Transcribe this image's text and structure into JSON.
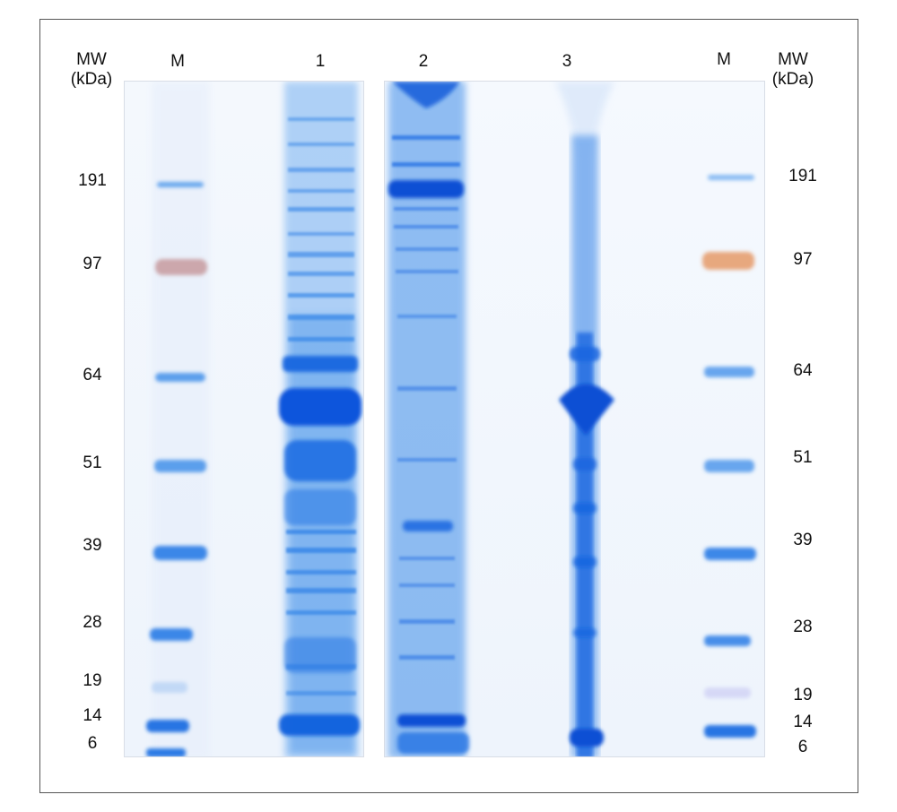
{
  "header": {
    "mw_label_left": "MW\n(kDa)",
    "mw_label_right": "MW\n(kDa)"
  },
  "lanes": [
    {
      "id": "M-left",
      "label": "M"
    },
    {
      "id": "1",
      "label": "1"
    },
    {
      "id": "2",
      "label": "2"
    },
    {
      "id": "3",
      "label": "3"
    },
    {
      "id": "M-right",
      "label": "M"
    }
  ],
  "markers_left": [
    {
      "label": "191"
    },
    {
      "label": "97"
    },
    {
      "label": "64"
    },
    {
      "label": "51"
    },
    {
      "label": "39"
    },
    {
      "label": "28"
    },
    {
      "label": "19"
    },
    {
      "label": "14"
    },
    {
      "label": "6"
    }
  ],
  "markers_right": [
    {
      "label": "191"
    },
    {
      "label": "97"
    },
    {
      "label": "64"
    },
    {
      "label": "51"
    },
    {
      "label": "39"
    },
    {
      "label": "28"
    },
    {
      "label": "19"
    },
    {
      "label": "14"
    },
    {
      "label": "6"
    }
  ],
  "colors": {
    "stain": "#1f6fe0",
    "stain_dark": "#0a4fd6",
    "marker_97": "#c98a82",
    "gel_bg": "#f3f7fd",
    "frame": "#555555"
  }
}
